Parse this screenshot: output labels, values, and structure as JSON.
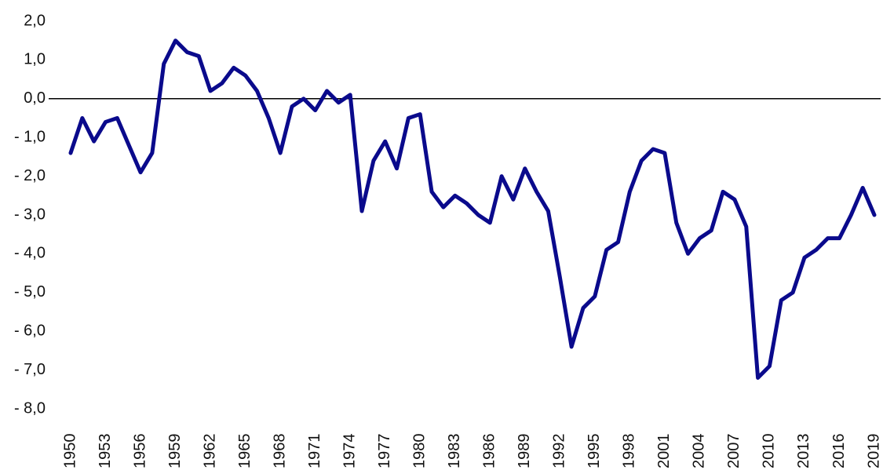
{
  "chart_data": {
    "type": "line",
    "color": "#0a0a8c",
    "x": [
      1950,
      1951,
      1952,
      1953,
      1954,
      1955,
      1956,
      1957,
      1958,
      1959,
      1960,
      1961,
      1962,
      1963,
      1964,
      1965,
      1966,
      1967,
      1968,
      1969,
      1970,
      1971,
      1972,
      1973,
      1974,
      1975,
      1976,
      1977,
      1978,
      1979,
      1980,
      1981,
      1982,
      1983,
      1984,
      1985,
      1986,
      1987,
      1988,
      1989,
      1990,
      1991,
      1992,
      1993,
      1994,
      1995,
      1996,
      1997,
      1998,
      1999,
      2000,
      2001,
      2002,
      2003,
      2004,
      2005,
      2006,
      2007,
      2008,
      2009,
      2010,
      2011,
      2012,
      2013,
      2014,
      2015,
      2016,
      2017,
      2018,
      2019
    ],
    "values": [
      -1.4,
      -0.5,
      -1.1,
      -0.6,
      -0.5,
      -1.2,
      -1.9,
      -1.4,
      0.9,
      1.5,
      1.2,
      1.1,
      0.2,
      0.4,
      0.8,
      0.6,
      0.2,
      -0.5,
      -1.4,
      -0.2,
      0.0,
      -0.3,
      0.2,
      -0.1,
      0.1,
      -2.9,
      -1.6,
      -1.1,
      -1.8,
      -0.5,
      -0.4,
      -2.4,
      -2.8,
      -2.5,
      -2.7,
      -3.0,
      -3.2,
      -2.0,
      -2.6,
      -1.8,
      -2.4,
      -2.9,
      -4.6,
      -6.4,
      -5.4,
      -5.1,
      -3.9,
      -3.7,
      -2.4,
      -1.6,
      -1.3,
      -1.4,
      -3.2,
      -4.0,
      -3.6,
      -3.4,
      -2.4,
      -2.6,
      -3.3,
      -7.2,
      -6.9,
      -5.2,
      -5.0,
      -4.1,
      -3.9,
      -3.6,
      -3.6,
      -3.0,
      -2.3,
      -3.0
    ],
    "xlim": [
      1950,
      2019
    ],
    "xticks": [
      1950,
      1953,
      1956,
      1959,
      1962,
      1965,
      1968,
      1971,
      1974,
      1977,
      1980,
      1983,
      1986,
      1989,
      1992,
      1995,
      1998,
      2001,
      2004,
      2007,
      2010,
      2013,
      2016,
      2019
    ],
    "ylim": [
      -8,
      2
    ],
    "yticks": [
      {
        "value": 2,
        "label": "2,0"
      },
      {
        "value": 1,
        "label": "1,0"
      },
      {
        "value": 0,
        "label": "0,0"
      },
      {
        "value": -1,
        "label": "- 1,0"
      },
      {
        "value": -2,
        "label": "- 2,0"
      },
      {
        "value": -3,
        "label": "- 3,0"
      },
      {
        "value": -4,
        "label": "- 4,0"
      },
      {
        "value": -5,
        "label": "- 5,0"
      },
      {
        "value": -6,
        "label": "- 6,0"
      },
      {
        "value": -7,
        "label": "- 7,0"
      },
      {
        "value": -8,
        "label": "- 8,0"
      }
    ],
    "grid": false
  }
}
